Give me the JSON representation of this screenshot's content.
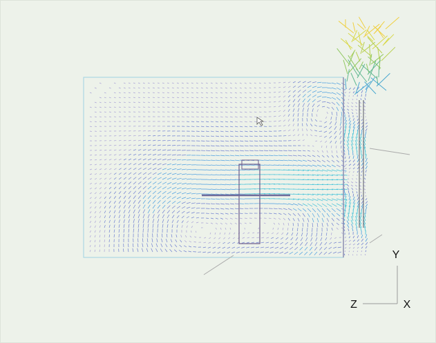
{
  "axes": {
    "y": "Y",
    "z": "Z",
    "x": "X"
  }
}
